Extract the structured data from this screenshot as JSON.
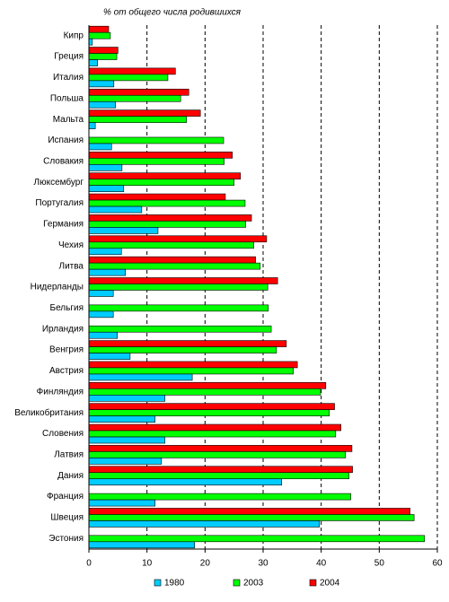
{
  "chart_data": {
    "type": "hbar",
    "title": "% от общего числа родившихся",
    "categories": [
      "Кипр",
      "Греция",
      "Италия",
      "Польша",
      "Мальта",
      "Испания",
      "Словакия",
      "Люксембург",
      "Португалия",
      "Германия",
      "Чехия",
      "Литва",
      "Нидерланды",
      "Бельгия",
      "Ирландия",
      "Венгрия",
      "Австрия",
      "Финляндия",
      "Великобритания",
      "Словения",
      "Латвия",
      "Дания",
      "Франция",
      "Швеция",
      "Эстония"
    ],
    "series": [
      {
        "name": "1980",
        "color": "#00ccff",
        "values": [
          0.6,
          1.5,
          4.3,
          4.6,
          1.1,
          3.9,
          5.7,
          6.0,
          9.1,
          11.9,
          5.6,
          6.3,
          4.2,
          4.2,
          4.9,
          7.1,
          17.8,
          13.1,
          11.4,
          13.1,
          12.5,
          33.2,
          11.4,
          39.7,
          18.2
        ]
      },
      {
        "name": "2003",
        "color": "#00ff00",
        "values": [
          3.7,
          4.8,
          13.6,
          15.8,
          16.8,
          23.2,
          23.3,
          25.0,
          26.9,
          27.0,
          28.4,
          29.5,
          30.8,
          30.9,
          31.4,
          32.3,
          35.2,
          39.9,
          41.4,
          42.5,
          44.2,
          44.8,
          45.1,
          56.0,
          57.8
        ]
      },
      {
        "name": "2004",
        "color": "#ff0000",
        "values": [
          3.4,
          5.0,
          14.9,
          17.2,
          19.2,
          null,
          24.7,
          26.1,
          23.5,
          28.0,
          30.6,
          28.7,
          32.5,
          null,
          null,
          34.0,
          35.9,
          40.8,
          42.3,
          43.4,
          45.3,
          45.4,
          null,
          55.3,
          null
        ]
      }
    ],
    "xlim": [
      0,
      60
    ],
    "xticks": [
      0,
      10,
      20,
      30,
      40,
      50,
      60
    ],
    "grid": true
  }
}
